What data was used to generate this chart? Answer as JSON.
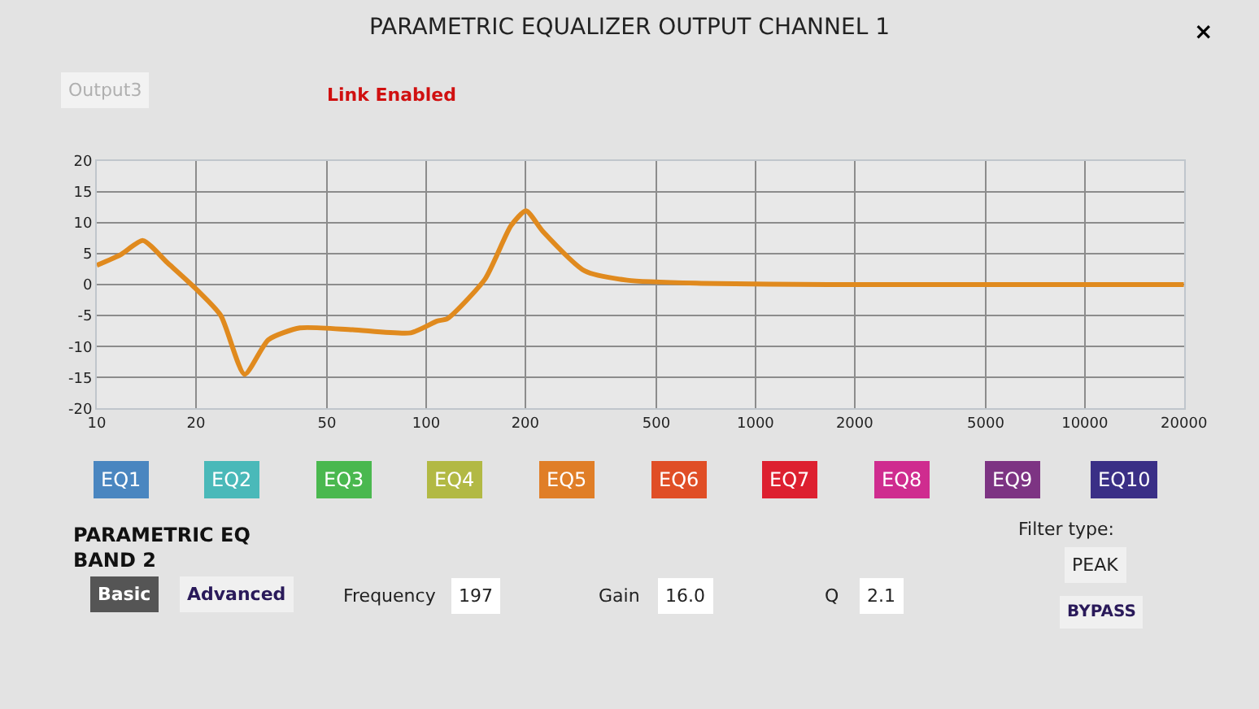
{
  "chart_data": {
    "type": "line",
    "title": "PARAMETRIC EQUALIZER OUTPUT CHANNEL 1",
    "x": [
      10,
      11.8,
      13.8,
      16.4,
      20.1,
      23.8,
      28.1,
      33.2,
      41.4,
      59.8,
      89.8,
      108,
      116,
      151,
      181,
      201,
      226,
      303,
      408,
      684,
      1660,
      20000
    ],
    "series": [
      {
        "color": "#e08a1e",
        "values": [
          3.1,
          4.8,
          7.1,
          3.5,
          -0.8,
          -5.0,
          -14.5,
          -8.9,
          -7.0,
          -7.3,
          -7.8,
          -5.9,
          -5.5,
          0.9,
          9.5,
          11.9,
          8.6,
          2.2,
          0.7,
          0.2,
          0,
          0
        ]
      }
    ],
    "log": "x",
    "xlim": [
      10,
      20000
    ],
    "xticks": [
      10,
      20,
      50,
      100,
      200,
      500,
      1000,
      2000,
      5000,
      10000,
      20000
    ],
    "ylim": [
      -20,
      20
    ],
    "yticks": [
      -20,
      -15,
      -10,
      -5,
      0,
      5,
      10,
      15,
      20
    ],
    "grid": true,
    "marker": "none",
    "line_style": "solid",
    "annotations": [
      "×",
      "Output3",
      "Link Enabled",
      "EQ1",
      "EQ2",
      "EQ3",
      "EQ4",
      "EQ5",
      "EQ6",
      "EQ7",
      "EQ8",
      "EQ9",
      "EQ10",
      "PARAMETRIC EQ\nBAND 2",
      "Basic",
      "Advanced",
      "Frequency",
      "197",
      "Gain",
      "16.0",
      "Q",
      "2.1",
      "Filter type:",
      "PEAK",
      "BYPASS"
    ]
  }
}
